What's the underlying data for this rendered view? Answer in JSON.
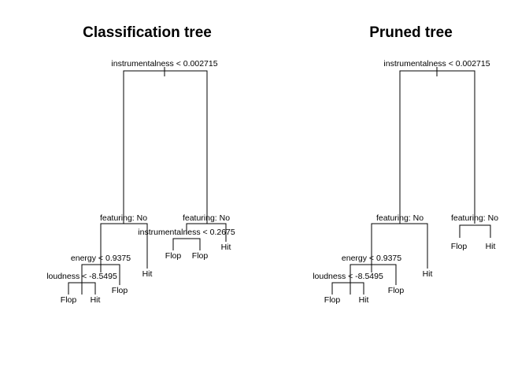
{
  "panels": [
    {
      "title": "Classification tree",
      "split_labels": {
        "root": "instrumentalness < 0.002715",
        "left": "featuring: No",
        "right": "featuring: No",
        "right_left": "instrumentalness < 0.2675",
        "left_left": "energy < 0.9375",
        "left_left_left": "loudness < -8.5495"
      },
      "leaf_labels": {
        "lll_left": "Flop",
        "lll_right": "Hit",
        "ll_right": "Flop",
        "l_right": "Hit",
        "rl_left": "Flop",
        "rl_right": "Flop",
        "r_right": "Hit"
      }
    },
    {
      "title": "Pruned tree",
      "split_labels": {
        "root": "instrumentalness < 0.002715",
        "left": "featuring: No",
        "right": "featuring: No",
        "left_left": "energy < 0.9375",
        "left_left_left": "loudness < -8.5495"
      },
      "leaf_labels": {
        "lll_left": "Flop",
        "lll_right": "Hit",
        "ll_right": "Flop",
        "l_right": "Hit",
        "r_left": "Flop",
        "r_right": "Hit"
      }
    }
  ]
}
